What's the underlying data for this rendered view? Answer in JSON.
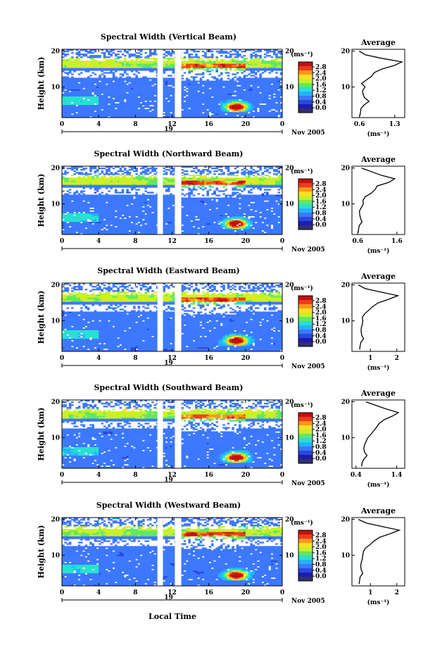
{
  "figure": {
    "xlabel": "Local Time",
    "date_label": "Nov 2005",
    "colorbar_unit": "(ms⁻¹)"
  },
  "colorbar_ticks": [
    "2.8",
    "2.4",
    "2.0",
    "1.6",
    "1.2",
    "0.8",
    "0.4",
    "0.0"
  ],
  "colors": {
    "scale": [
      "#1c1cb0",
      "#2a48e0",
      "#3c78ff",
      "#22b4ff",
      "#28e0d0",
      "#60e860",
      "#c8f028",
      "#ffe020",
      "#ff9818",
      "#f03c18",
      "#c41010"
    ],
    "bottom_band": "#303070"
  },
  "chart_data": [
    {
      "type": "heatmap",
      "title": "Spectral Width (Vertical Beam)",
      "ylabel": "Height (km)",
      "x_ticks": [
        "0",
        "4",
        "8",
        "12",
        "16",
        "20",
        "0"
      ],
      "day_label": "19",
      "y_ticks": [
        "20",
        "10"
      ],
      "xlim": [
        0,
        24
      ],
      "ylim": [
        1.5,
        20.5
      ],
      "gaps": [
        [
          10.4,
          11.0
        ],
        [
          12.3,
          13.0
        ]
      ],
      "profile": {
        "title": "Average",
        "xlabel": "(ms⁻¹)",
        "x_ticks": [
          "0.6",
          "1.3"
        ],
        "xlim": [
          0.45,
          1.5
        ],
        "heights": [
          2,
          3,
          4,
          5,
          6,
          7,
          8,
          9,
          10,
          11,
          12,
          13,
          14,
          15,
          16,
          17,
          18,
          19,
          20
        ],
        "values": [
          0.62,
          0.63,
          0.64,
          0.7,
          0.8,
          0.71,
          0.68,
          0.67,
          0.72,
          0.65,
          0.75,
          0.85,
          0.9,
          1.05,
          1.3,
          1.45,
          1.05,
          0.72,
          0.6
        ]
      }
    },
    {
      "type": "heatmap",
      "title": "Spectral Width (Northward Beam)",
      "ylabel": "Height (km)",
      "x_ticks": [
        "0",
        "4",
        "8",
        "12",
        "16",
        "20",
        "0"
      ],
      "day_label": "",
      "y_ticks": [
        "20",
        "10"
      ],
      "xlim": [
        0,
        24
      ],
      "ylim": [
        1.5,
        20.5
      ],
      "gaps": [
        [
          10.4,
          11.0
        ],
        [
          12.3,
          13.0
        ]
      ],
      "profile": {
        "title": "Average",
        "xlabel": "(ms⁻¹)",
        "x_ticks": [
          "0.6",
          "1.6"
        ],
        "xlim": [
          0.45,
          1.8
        ],
        "heights": [
          2,
          3,
          4,
          5,
          6,
          7,
          8,
          9,
          10,
          11,
          12,
          13,
          14,
          15,
          16,
          17,
          18,
          19,
          20
        ],
        "values": [
          0.62,
          0.63,
          0.65,
          0.72,
          0.68,
          0.66,
          0.65,
          0.7,
          0.75,
          0.74,
          0.8,
          0.95,
          1.05,
          1.1,
          1.4,
          1.55,
          1.2,
          0.95,
          0.7
        ]
      }
    },
    {
      "type": "heatmap",
      "title": "Spectral Width (Eastward Beam)",
      "ylabel": "Height (km)",
      "x_ticks": [
        "0",
        "4",
        "8",
        "12",
        "16",
        "20",
        "0"
      ],
      "day_label": "19",
      "y_ticks": [
        "20",
        "10"
      ],
      "xlim": [
        0,
        24
      ],
      "ylim": [
        1.5,
        20.5
      ],
      "gaps": [
        [
          10.4,
          11.0
        ],
        [
          12.3,
          13.0
        ]
      ],
      "profile": {
        "title": "Average",
        "xlabel": "(ms⁻¹)",
        "x_ticks": [
          "1",
          "2"
        ],
        "xlim": [
          0.3,
          2.3
        ],
        "heights": [
          2,
          3,
          4,
          5,
          6,
          7,
          8,
          9,
          10,
          11,
          12,
          13,
          14,
          15,
          16,
          17,
          18,
          19,
          20
        ],
        "values": [
          0.6,
          0.62,
          0.65,
          0.75,
          0.68,
          0.66,
          0.66,
          0.7,
          0.72,
          0.7,
          0.8,
          0.95,
          1.1,
          1.3,
          1.7,
          2.05,
          1.4,
          0.8,
          0.55
        ]
      }
    },
    {
      "type": "heatmap",
      "title": "Spectral Width (Southward Beam)",
      "ylabel": "Height (km)",
      "x_ticks": [
        "0",
        "4",
        "8",
        "12",
        "16",
        "20",
        "0"
      ],
      "day_label": "19",
      "y_ticks": [
        "20",
        "10"
      ],
      "xlim": [
        0,
        24
      ],
      "ylim": [
        1.5,
        20.5
      ],
      "gaps": [
        [
          10.4,
          11.0
        ],
        [
          12.3,
          13.0
        ]
      ],
      "profile": {
        "title": "Average",
        "xlabel": "(ms⁻¹)",
        "x_ticks": [
          "0.4",
          "1.4"
        ],
        "xlim": [
          0.3,
          1.6
        ],
        "heights": [
          2,
          3,
          4,
          5,
          6,
          7,
          8,
          9,
          10,
          11,
          12,
          13,
          14,
          15,
          16,
          17,
          18,
          19,
          20
        ],
        "values": [
          0.55,
          0.56,
          0.6,
          0.68,
          0.62,
          0.6,
          0.62,
          0.66,
          0.7,
          0.78,
          0.85,
          0.92,
          0.98,
          1.1,
          1.3,
          1.45,
          1.15,
          0.9,
          0.65
        ]
      }
    },
    {
      "type": "heatmap",
      "title": "Spectral Width (Westward Beam)",
      "ylabel": "Height (km)",
      "x_ticks": [
        "0",
        "4",
        "8",
        "12",
        "16",
        "20",
        "0"
      ],
      "day_label": "19",
      "y_ticks": [
        "20",
        "10"
      ],
      "xlim": [
        0,
        24
      ],
      "ylim": [
        1.5,
        20.5
      ],
      "gaps": [
        [
          10.4,
          11.0
        ],
        [
          12.3,
          13.0
        ]
      ],
      "profile": {
        "title": "Average",
        "xlabel": "(ms⁻¹)",
        "x_ticks": [
          "1",
          "2"
        ],
        "xlim": [
          0.3,
          2.3
        ],
        "heights": [
          2,
          3,
          4,
          5,
          6,
          7,
          8,
          9,
          10,
          11,
          12,
          13,
          14,
          15,
          16,
          17,
          18,
          19,
          20
        ],
        "values": [
          0.58,
          0.6,
          0.62,
          0.72,
          0.66,
          0.64,
          0.66,
          0.7,
          0.72,
          0.74,
          0.82,
          1.0,
          1.15,
          1.35,
          1.75,
          2.1,
          1.45,
          0.85,
          0.55
        ]
      }
    }
  ]
}
